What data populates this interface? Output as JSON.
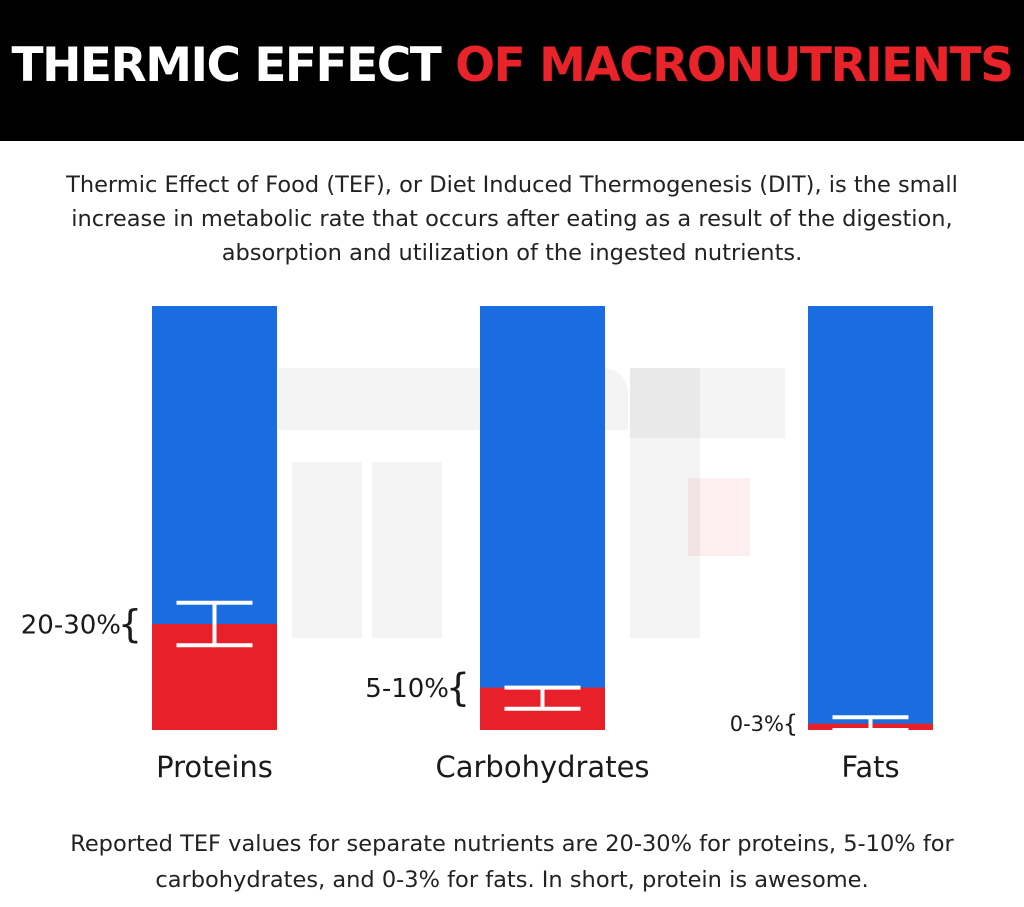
{
  "header": {
    "title_part1": "THERMIC EFFECT ",
    "title_part2": "OF MACRONUTRIENTS"
  },
  "intro": {
    "line1": "Thermic Effect of Food (TEF), or Diet Induced Thermogenesis (DIT), is the small",
    "line2": "increase in metabolic rate that occurs after eating as a result of the digestion,",
    "line3": "absorption and utilization of the ingested nutrients."
  },
  "footer": {
    "line1": "Reported TEF values for separate nutrients are 20-30% for proteins, 5-10% for",
    "line2": "carbohydrates, and 0-3% for fats. In short, protein is awesome."
  },
  "colors": {
    "header_bg": "#000000",
    "header_text": "#ffffff",
    "accent_red": "#e8232a",
    "bar_blue": "#1a6de0",
    "bar_red": "#e8202a"
  },
  "chart_data": {
    "type": "bar",
    "stacked": true,
    "ylim": [
      0,
      100
    ],
    "categories": [
      "Proteins",
      "Carbohydrates",
      "Fats"
    ],
    "range_labels": [
      "20-30%",
      "5-10%",
      "0-3%"
    ],
    "ranges": [
      [
        20,
        30
      ],
      [
        5,
        10
      ],
      [
        0,
        3
      ]
    ],
    "series": [
      {
        "values": [
          25,
          10,
          1.5
        ],
        "color": "#e8202a"
      },
      {
        "values": [
          75,
          90,
          98.5
        ],
        "color": "#1a6de0"
      }
    ],
    "grid": false,
    "legend": "none"
  }
}
